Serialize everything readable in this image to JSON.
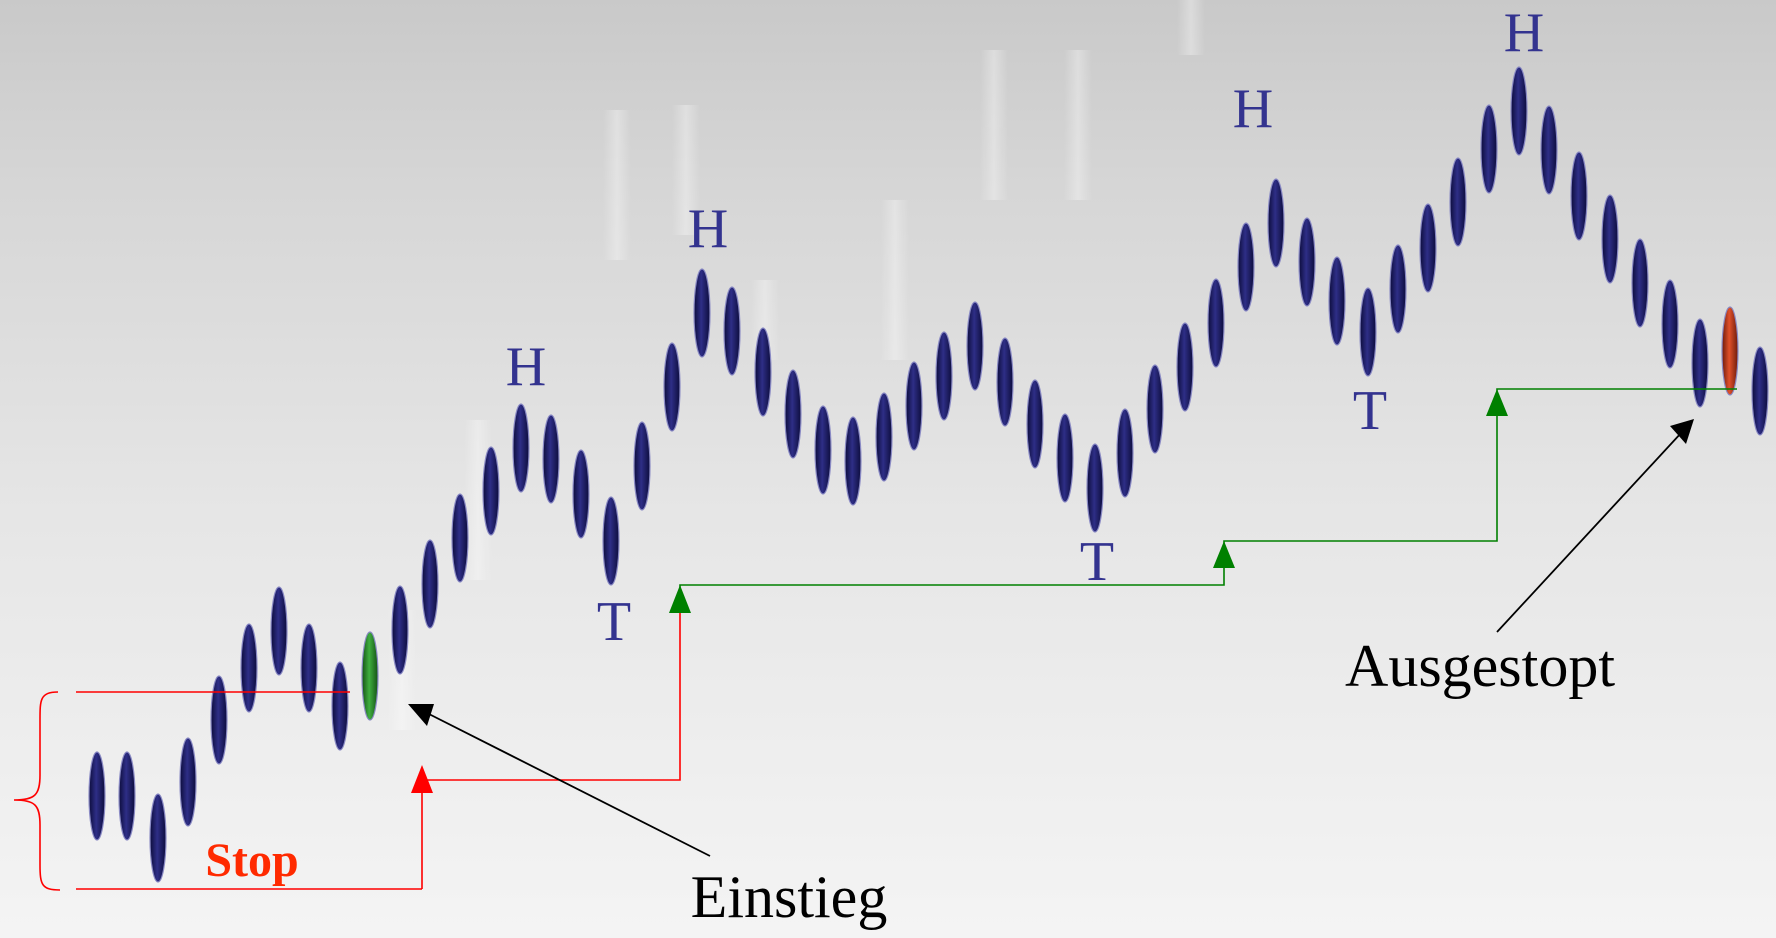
{
  "labels": {
    "high": "H",
    "low": "T",
    "stop": "Stop",
    "entry": "Einstieg",
    "stopped_out": "Ausgestopt"
  },
  "colors": {
    "background_top": "#c9c9c9",
    "background_bottom": "#f4f4f4",
    "bar_fill": "#1a1a5e",
    "bar_stroke": "#7a7ab8",
    "entry_bar": "#2d8a2d",
    "exit_bar": "#c0391a",
    "initial_stop_line": "#ff0000",
    "trailing_stop_line": "#008000",
    "label_ht": "#33338f",
    "stop_text": "#ff2a00",
    "arrow": "#000000"
  },
  "icons": {
    "stop_step_marker": "triangle-up",
    "stop_range_bracket": "curly-brace-left"
  }
}
